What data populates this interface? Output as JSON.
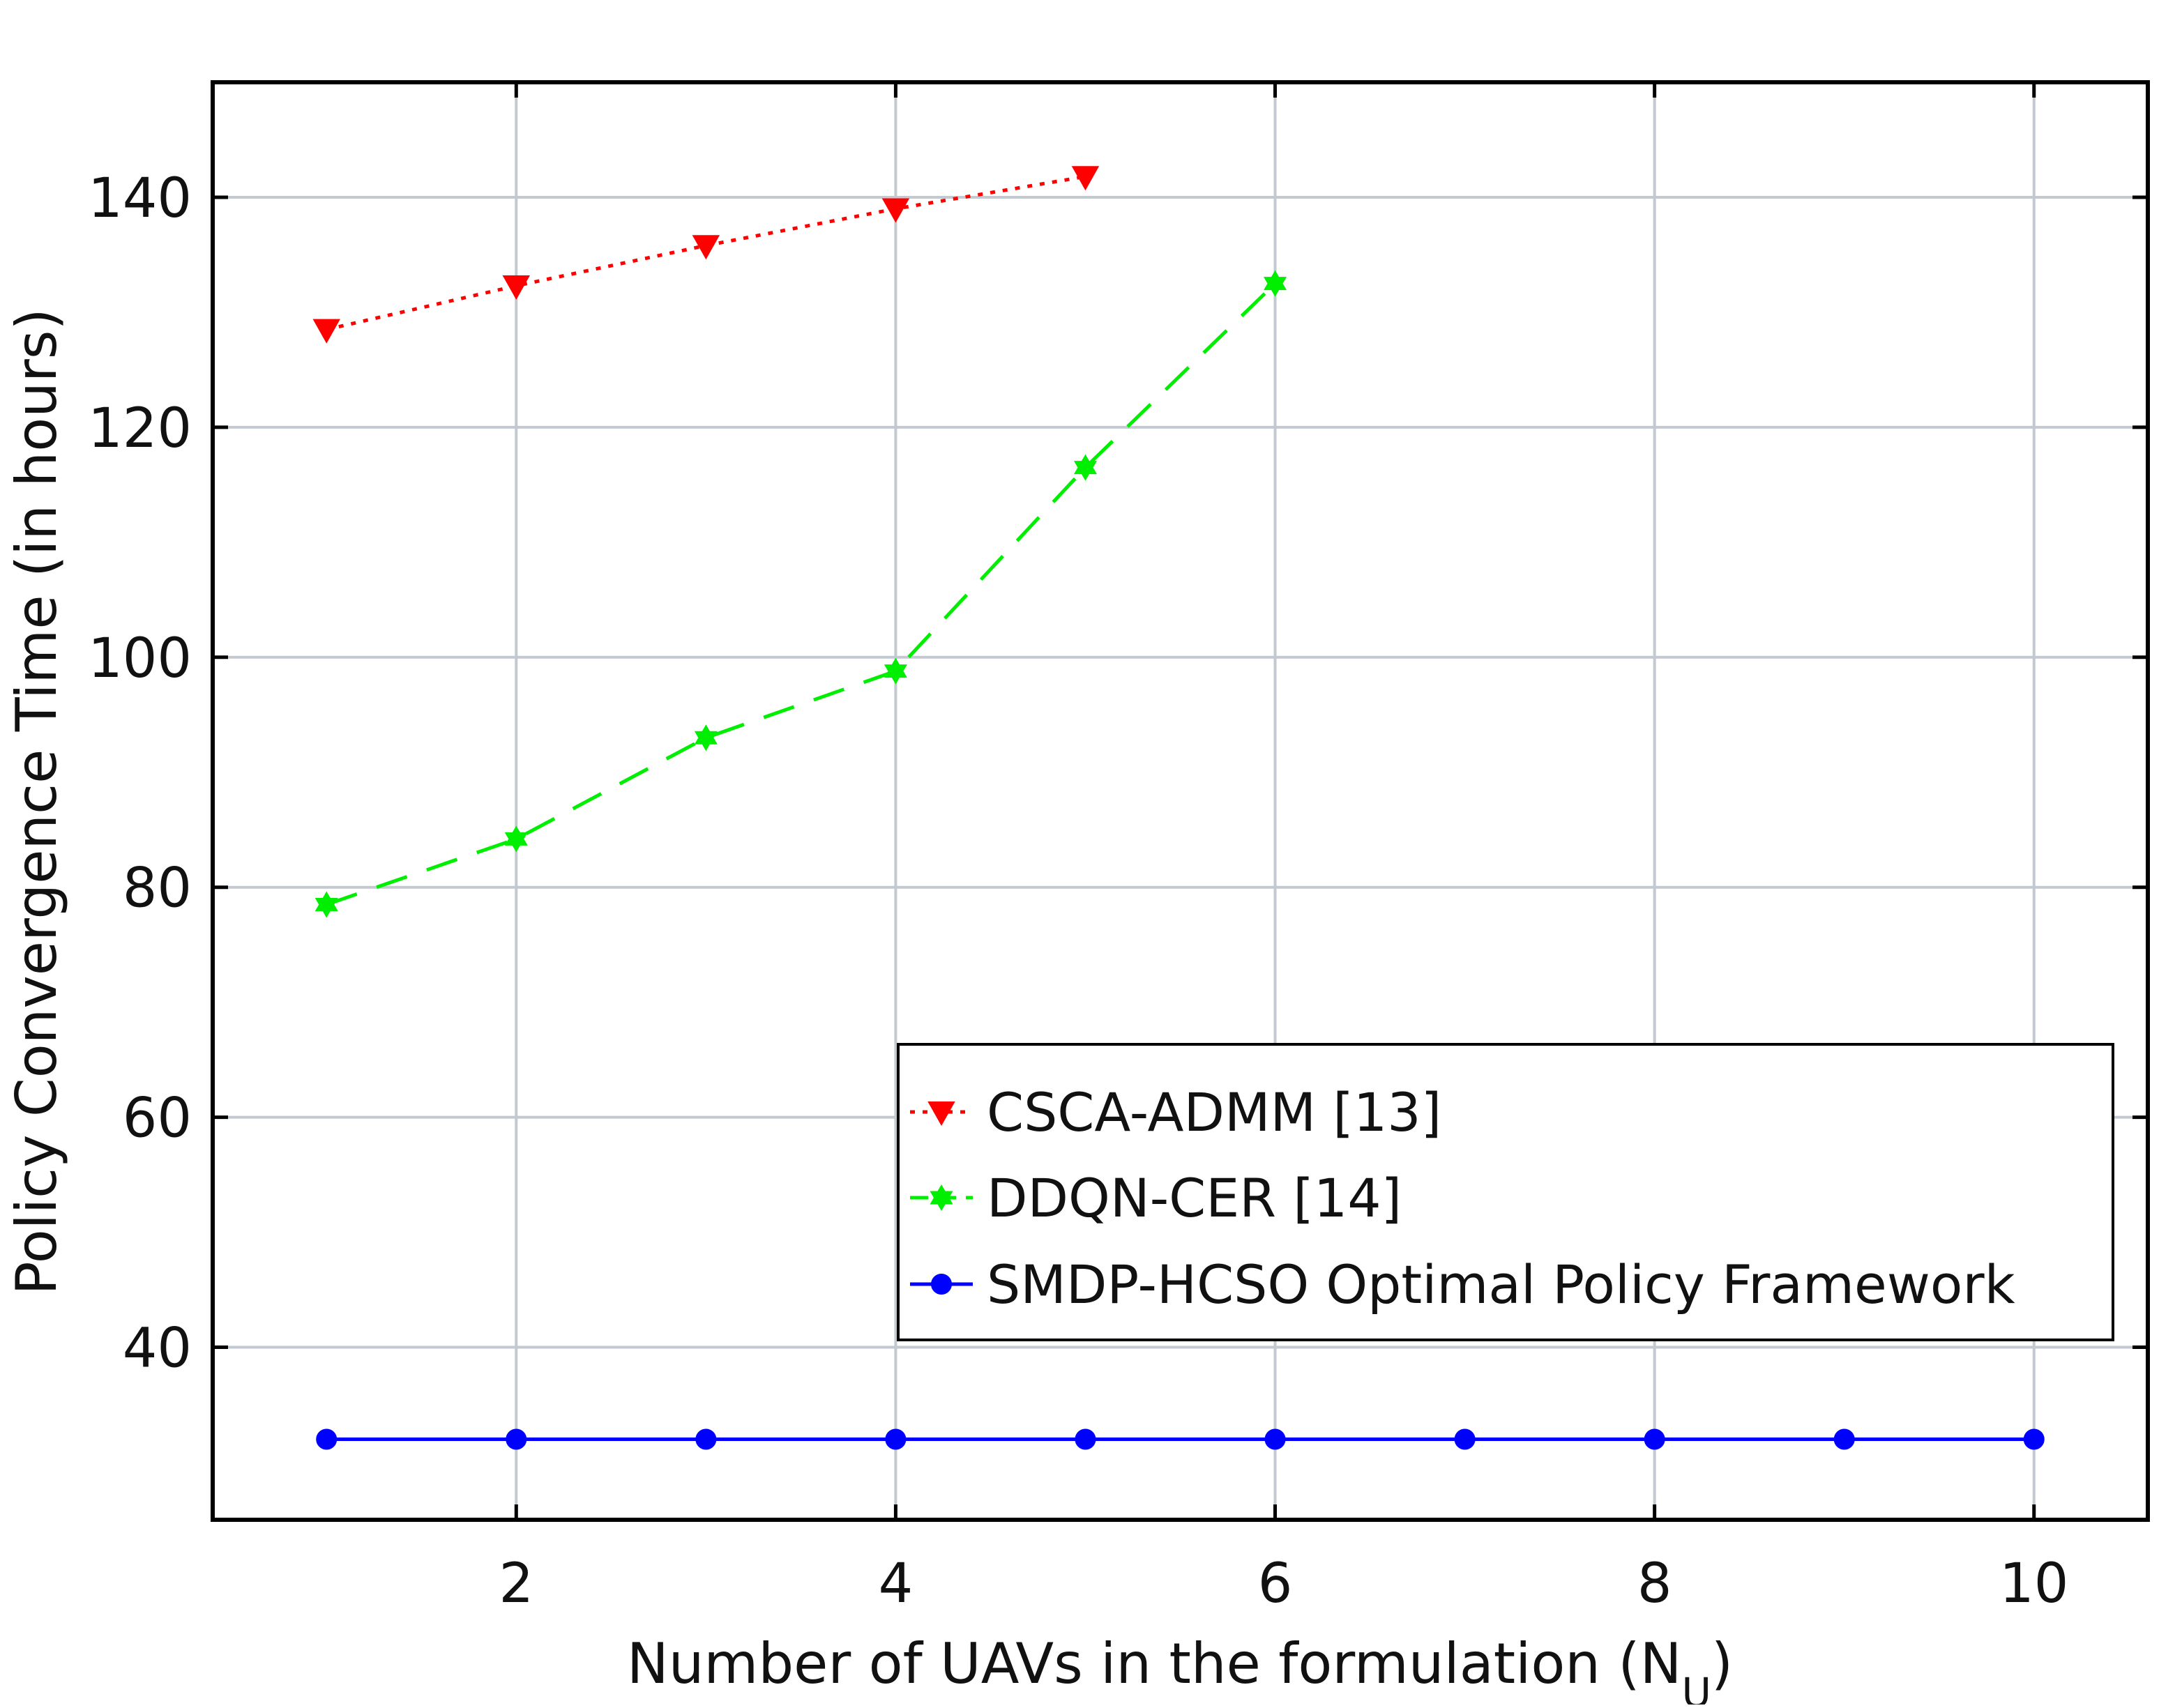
{
  "chart_data": {
    "type": "line",
    "title": "",
    "xlabel": "Number of UAVs in the formulation (N",
    "xlabel_sub": "U",
    "xlabel_close": ")",
    "ylabel": "Policy Convergence Time (in hours)",
    "xlim": [
      0.4,
      10.6
    ],
    "ylim": [
      25,
      150
    ],
    "x_ticks": [
      2,
      4,
      6,
      8,
      10
    ],
    "x_tick_labels": [
      "2",
      "4",
      "6",
      "8",
      "10"
    ],
    "y_ticks": [
      40,
      60,
      80,
      100,
      120,
      140
    ],
    "y_tick_labels": [
      "40",
      "60",
      "80",
      "100",
      "120",
      "140"
    ],
    "grid": true,
    "legend_position": "lower-right",
    "series": [
      {
        "name": "CSCA-ADMM [13]",
        "color": "#ff0000",
        "line_style": "dotted",
        "marker": "triangle-down",
        "x": [
          1,
          2,
          3,
          4,
          5
        ],
        "values": [
          128.5,
          132.3,
          135.8,
          139.0,
          141.8
        ]
      },
      {
        "name": "DDQN-CER [14]",
        "color": "#00ee00",
        "line_style": "dashed",
        "marker": "hexagram",
        "x": [
          1,
          2,
          3,
          4,
          5,
          6
        ],
        "values": [
          78.5,
          84.2,
          93.0,
          98.8,
          116.5,
          132.5
        ]
      },
      {
        "name": "SMDP-HCSO Optimal Policy Framework",
        "color": "#0000ff",
        "line_style": "solid",
        "marker": "circle",
        "x": [
          1,
          2,
          3,
          4,
          5,
          6,
          7,
          8,
          9,
          10
        ],
        "values": [
          32,
          32,
          32,
          32,
          32,
          32,
          32,
          32,
          32,
          32
        ]
      }
    ]
  }
}
